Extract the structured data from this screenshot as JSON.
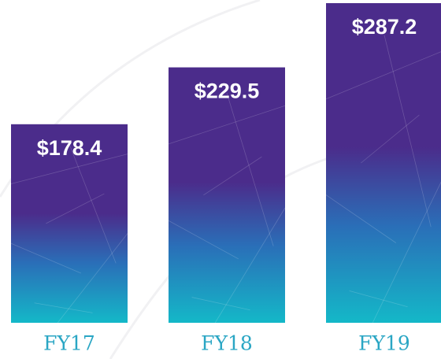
{
  "chart_data": {
    "type": "bar",
    "categories": [
      "FY17",
      "FY18",
      "FY19"
    ],
    "values": [
      178.4,
      229.5,
      287.2
    ],
    "value_labels": [
      "$178.4",
      "$229.5",
      "$287.2"
    ],
    "gradient": [
      "#4b2c8b",
      "#14b8c8"
    ]
  }
}
